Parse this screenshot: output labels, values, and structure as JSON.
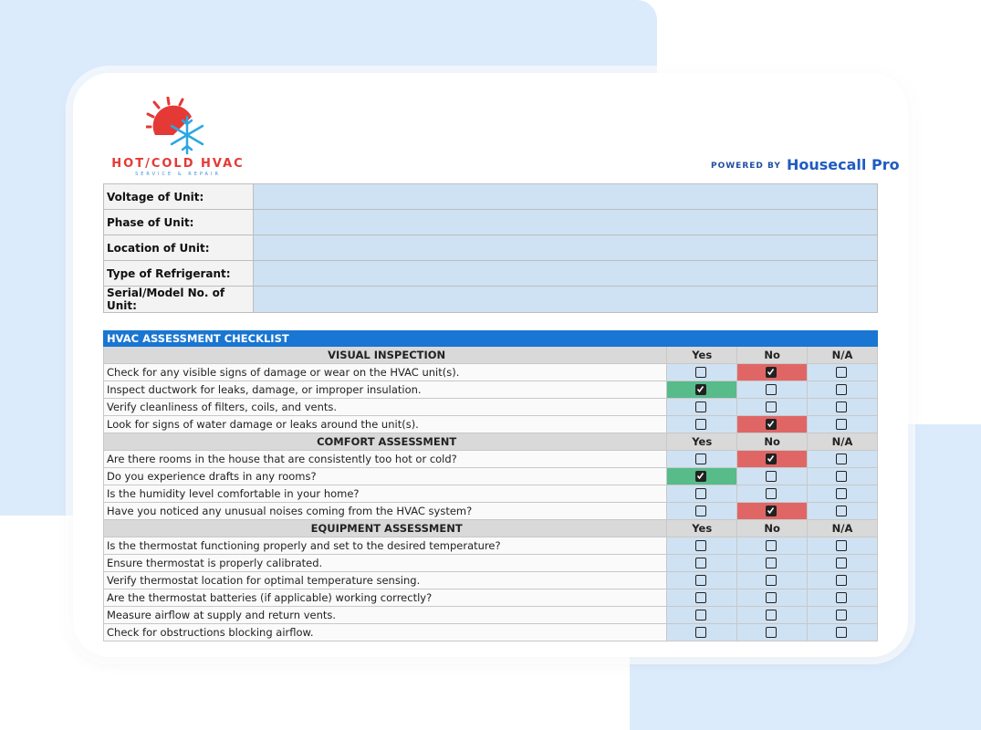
{
  "brand": {
    "name": "HOT/COLD HVAC",
    "tagline": "SERVICE & REPAIR",
    "powered_by": "POWERED BY",
    "partner": "Housecall Pro"
  },
  "unit_info": [
    {
      "label": "Voltage of Unit:"
    },
    {
      "label": "Phase of Unit:"
    },
    {
      "label": "Location of Unit:"
    },
    {
      "label": "Type of Refrigerant:"
    },
    {
      "label": "Serial/Model No. of Unit:"
    }
  ],
  "checklist": {
    "title": "HVAC ASSESSMENT CHECKLIST",
    "sections": [
      {
        "title": "VISUAL INSPECTION",
        "columns": [
          "Yes",
          "No",
          "N/A"
        ],
        "items": [
          {
            "text": "Check for any visible signs of damage or wear on the HVAC unit(s).",
            "checked": 1
          },
          {
            "text": "Inspect ductwork for leaks, damage, or improper insulation.",
            "checked": 0
          },
          {
            "text": "Verify cleanliness of filters, coils, and vents.",
            "checked": null
          },
          {
            "text": "Look for signs of water damage or leaks around the unit(s).",
            "checked": 1
          }
        ]
      },
      {
        "title": "COMFORT ASSESSMENT",
        "columns": [
          "Yes",
          "No",
          "N/A"
        ],
        "items": [
          {
            "text": "Are there rooms in the house that are consistently too hot or cold?",
            "checked": 1
          },
          {
            "text": "Do you experience drafts in any rooms?",
            "checked": 0
          },
          {
            "text": "Is the humidity level comfortable in your home?",
            "checked": null
          },
          {
            "text": "Have you noticed any unusual noises coming from the HVAC system?",
            "checked": 1
          }
        ]
      },
      {
        "title": "EQUIPMENT ASSESSMENT",
        "columns": [
          "Yes",
          "No",
          "N/A"
        ],
        "items": [
          {
            "text": "Is the thermostat functioning properly and set to the desired temperature?",
            "checked": null
          },
          {
            "text": "Ensure thermostat is properly calibrated.",
            "checked": null
          },
          {
            "text": "Verify thermostat location for optimal temperature sensing.",
            "checked": null
          },
          {
            "text": "Are the thermostat batteries (if applicable) working correctly?",
            "checked": null
          },
          {
            "text": "Measure airflow at supply and return vents.",
            "checked": null
          },
          {
            "text": "Check for obstructions blocking airflow.",
            "checked": null
          }
        ]
      }
    ]
  }
}
